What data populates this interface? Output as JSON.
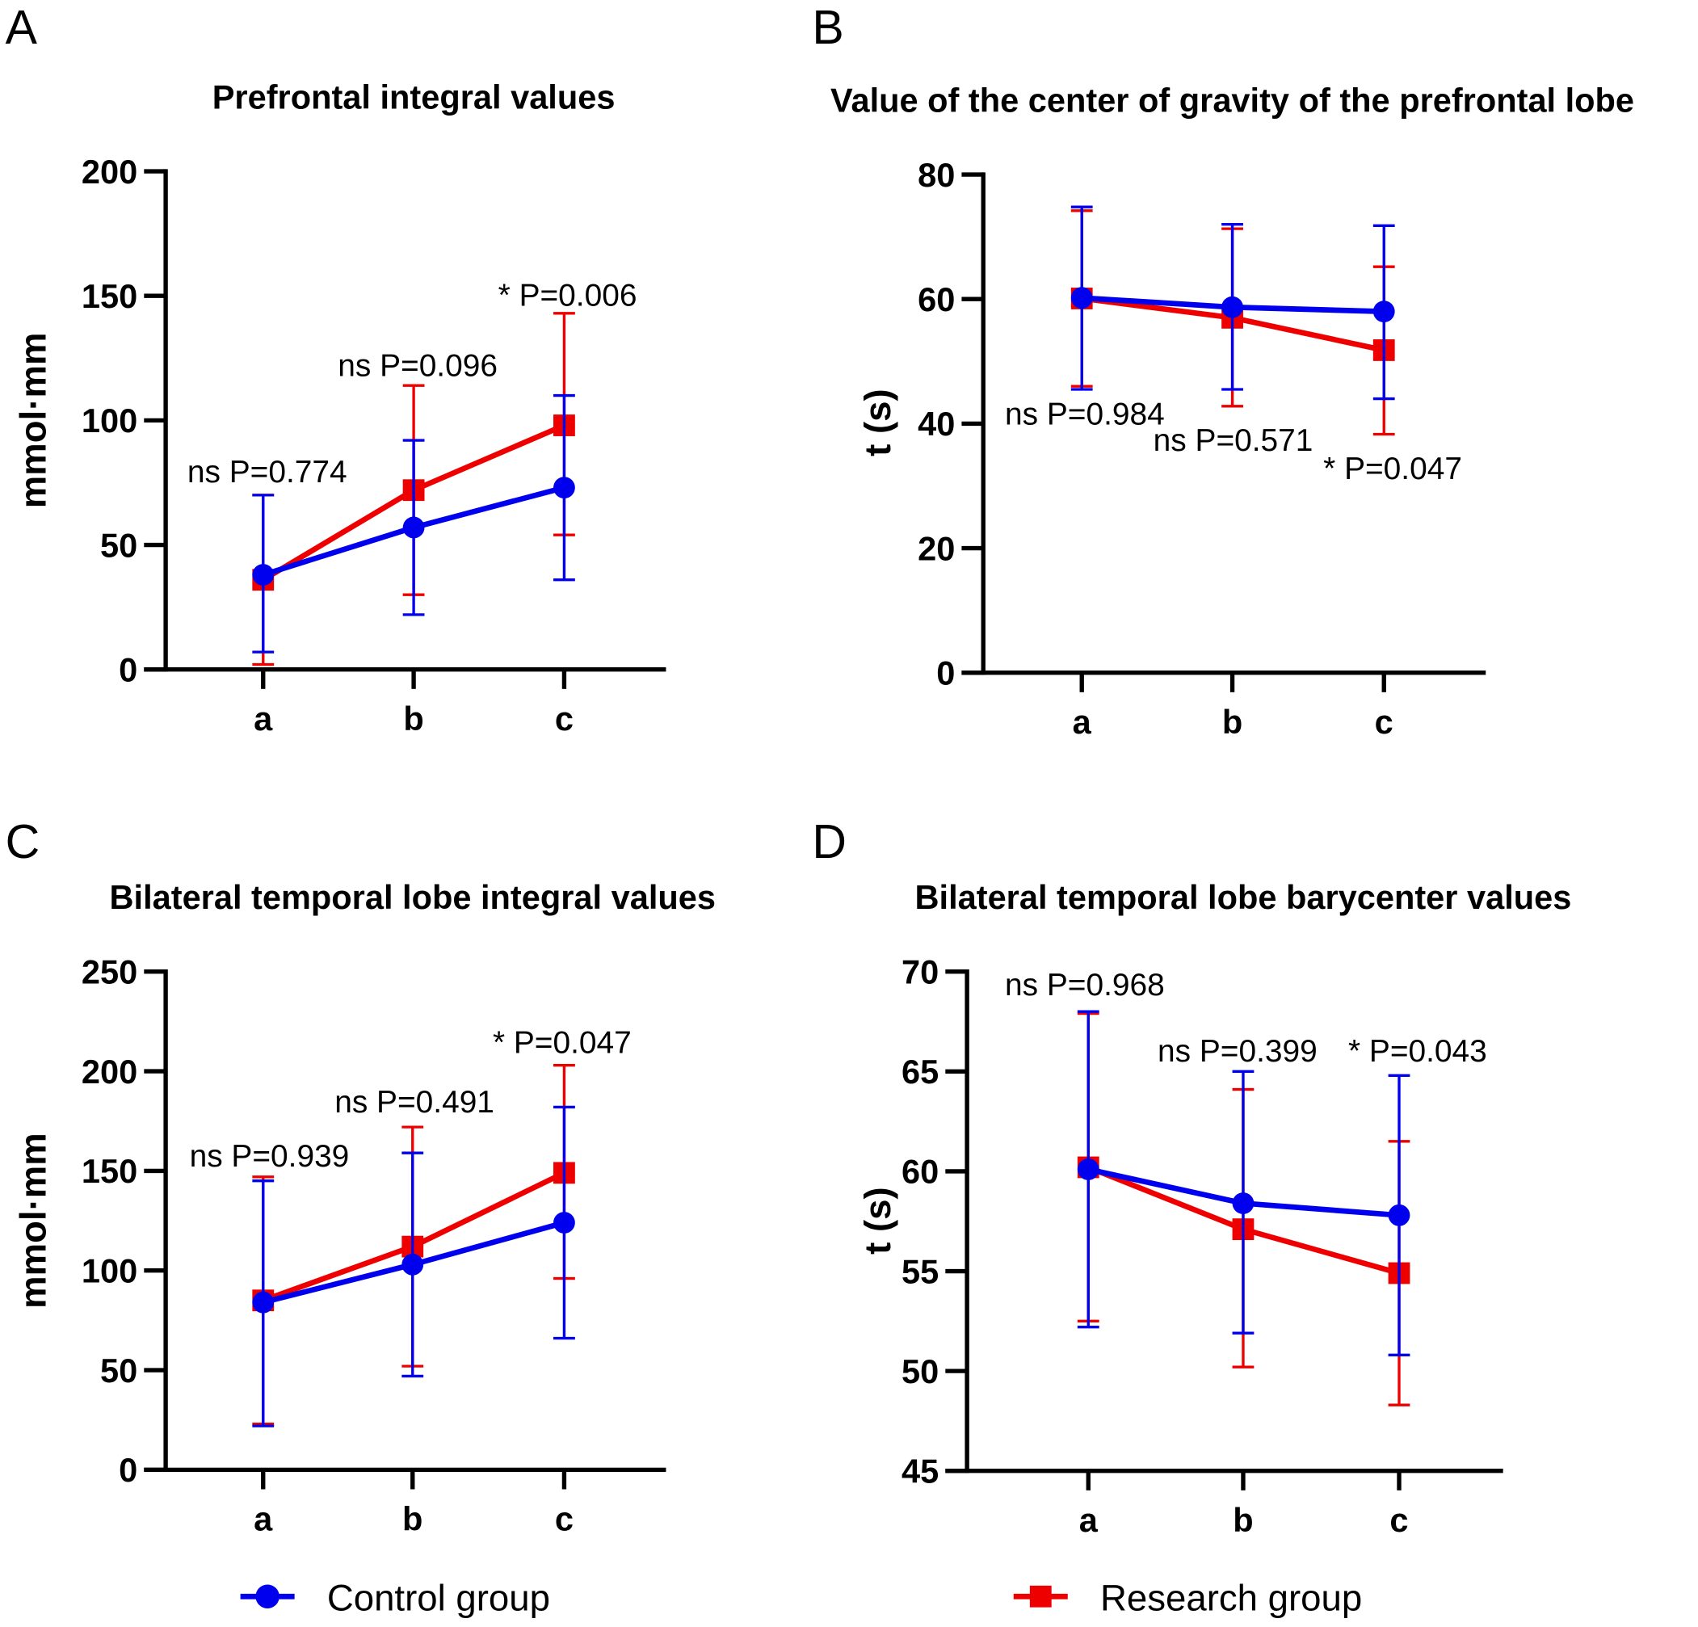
{
  "legend": [
    {
      "name": "Control group",
      "color": "#0000ee",
      "marker": "circle"
    },
    {
      "name": "Research group",
      "color": "#ee0000",
      "marker": "square"
    }
  ],
  "chart_data": [
    {
      "panel": "A",
      "type": "line",
      "title": "Prefrontal integral values",
      "xlabel": "",
      "ylabel": "mmol·mm",
      "categories": [
        "a",
        "b",
        "c"
      ],
      "ylim": [
        0,
        200
      ],
      "yticks": [
        0,
        50,
        100,
        150,
        200
      ],
      "series": [
        {
          "name": "Control group",
          "values": [
            38,
            57,
            73
          ],
          "err_low": [
            7,
            22,
            36
          ],
          "err_high": [
            70,
            92,
            110
          ]
        },
        {
          "name": "Research group",
          "values": [
            36,
            72,
            98
          ],
          "err_low": [
            2,
            30,
            54
          ],
          "err_high": [
            70,
            114,
            143
          ]
        }
      ],
      "annotations": [
        "ns P=0.774",
        "ns P=0.096",
        "* P=0.006"
      ]
    },
    {
      "panel": "B",
      "type": "line",
      "title": "Value of the center of gravity of the prefrontal lobe",
      "xlabel": "",
      "ylabel": "t (s)",
      "categories": [
        "a",
        "b",
        "c"
      ],
      "ylim": [
        0,
        80
      ],
      "yticks": [
        0,
        20,
        40,
        60,
        80
      ],
      "series": [
        {
          "name": "Control group",
          "values": [
            60.2,
            58.7,
            58.0
          ],
          "err_low": [
            45.5,
            45.5,
            44.0
          ],
          "err_high": [
            74.8,
            72.0,
            71.8
          ]
        },
        {
          "name": "Research group",
          "values": [
            60.1,
            57.0,
            51.8
          ],
          "err_low": [
            46.0,
            42.8,
            38.3
          ],
          "err_high": [
            74.2,
            71.3,
            65.2
          ]
        }
      ],
      "annotations": [
        "ns P=0.984",
        "ns P=0.571",
        "* P=0.047"
      ]
    },
    {
      "panel": "C",
      "type": "line",
      "title": "Bilateral temporal lobe integral values",
      "xlabel": "",
      "ylabel": "mmol·mm",
      "categories": [
        "a",
        "b",
        "c"
      ],
      "ylim": [
        0,
        250
      ],
      "yticks": [
        0,
        50,
        100,
        150,
        200,
        250
      ],
      "series": [
        {
          "name": "Control group",
          "values": [
            84,
            103,
            124
          ],
          "err_low": [
            22,
            47,
            66
          ],
          "err_high": [
            145,
            159,
            182
          ]
        },
        {
          "name": "Research group",
          "values": [
            85,
            112,
            149
          ],
          "err_low": [
            23,
            52,
            96
          ],
          "err_high": [
            147,
            172,
            203
          ]
        }
      ],
      "annotations": [
        "ns P=0.939",
        "ns P=0.491",
        "* P=0.047"
      ]
    },
    {
      "panel": "D",
      "type": "line",
      "title": "Bilateral temporal lobe barycenter values",
      "xlabel": "",
      "ylabel": "t (s)",
      "categories": [
        "a",
        "b",
        "c"
      ],
      "ylim": [
        45,
        70
      ],
      "yticks": [
        45,
        50,
        55,
        60,
        65,
        70
      ],
      "series": [
        {
          "name": "Control group",
          "values": [
            60.1,
            58.4,
            57.8
          ],
          "err_low": [
            52.2,
            51.9,
            50.8
          ],
          "err_high": [
            68.0,
            65.0,
            64.8
          ]
        },
        {
          "name": "Research group",
          "values": [
            60.2,
            57.1,
            54.9
          ],
          "err_low": [
            52.5,
            50.2,
            48.3
          ],
          "err_high": [
            67.9,
            64.1,
            61.5
          ]
        }
      ],
      "annotations": [
        "ns P=0.968",
        "ns P=0.399",
        "* P=0.043"
      ]
    }
  ]
}
